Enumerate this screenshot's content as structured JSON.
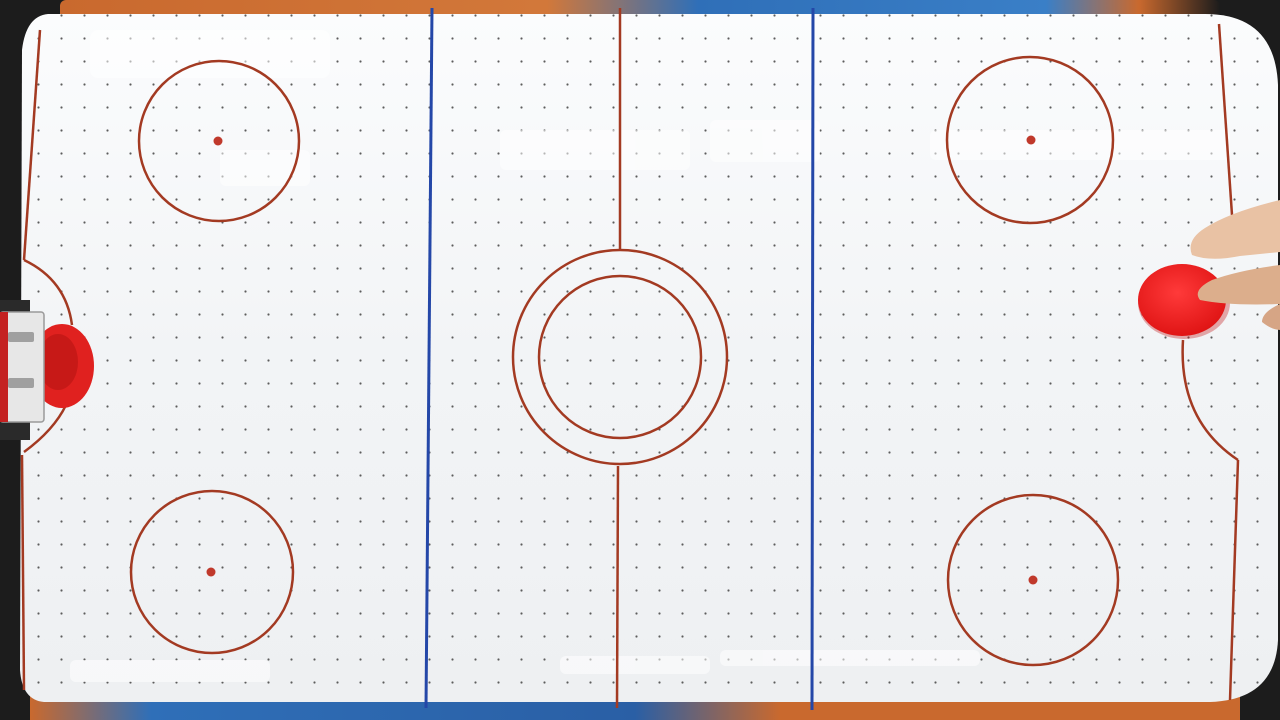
{
  "scene": {
    "subject": "air-hockey-table-top-view",
    "colors": {
      "surface": "#f4f6f8",
      "rink_line": "#a33a22",
      "blue_line": "#2447a8",
      "frame_orange": "#c9692e",
      "frame_blue": "#2f6fb8",
      "frame_dark": "#1c1c1c",
      "puck": "#ef1c1c",
      "paddle": "#e0211f",
      "skin": "#e9c2a4",
      "air_hole": "#5c5c5c"
    }
  }
}
